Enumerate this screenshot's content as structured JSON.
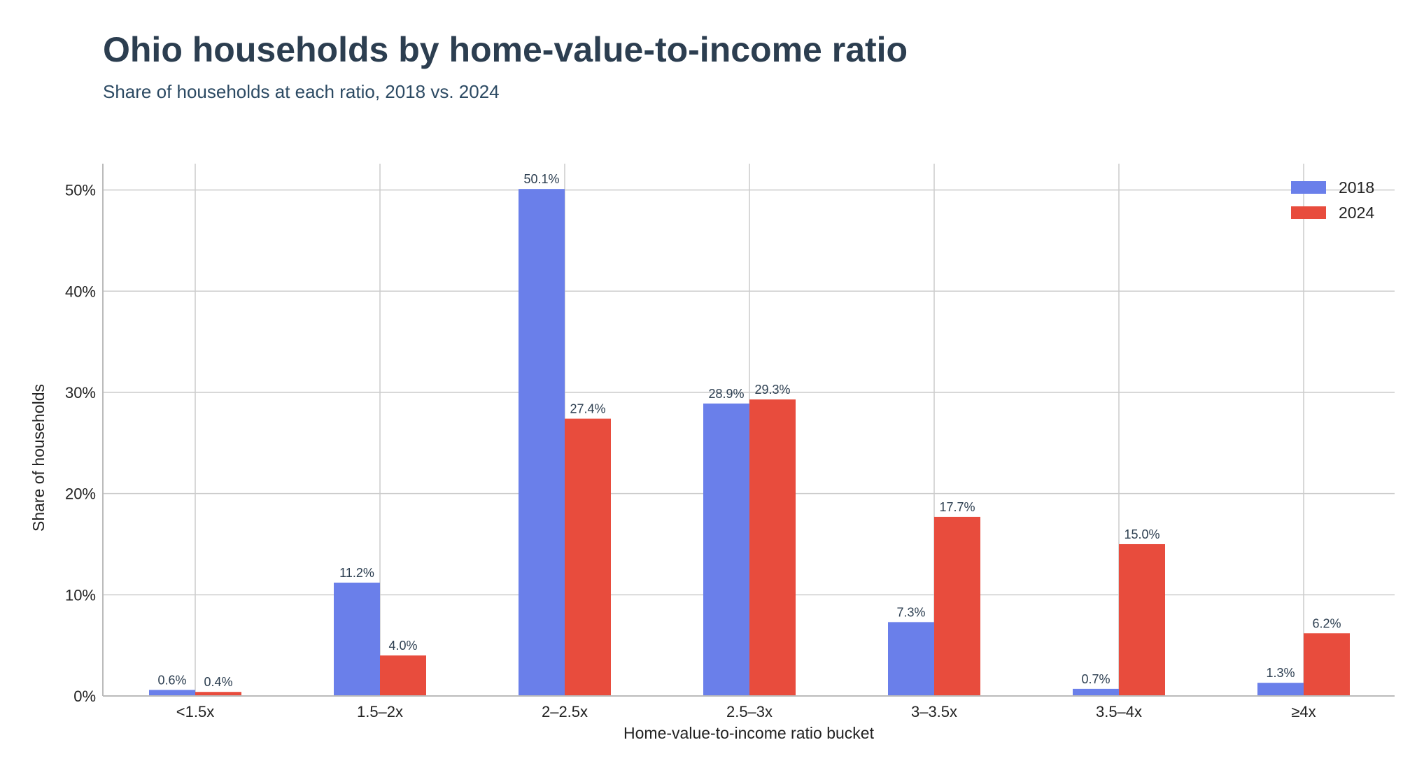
{
  "chart_data": {
    "type": "bar",
    "title": "Ohio households by home-value-to-income ratio",
    "subtitle": "Share of households at each ratio, 2018 vs. 2024",
    "xlabel": "Home-value-to-income ratio bucket",
    "ylabel": "Share of households",
    "categories": [
      "<1.5x",
      "1.5–2x",
      "2–2.5x",
      "2.5–3x",
      "3–3.5x",
      "3.5–4x",
      "≥4x"
    ],
    "series": [
      {
        "name": "2018",
        "color": "#6a7fea",
        "values": [
          0.6,
          11.2,
          50.1,
          28.9,
          7.3,
          0.7,
          1.3
        ]
      },
      {
        "name": "2024",
        "color": "#e84c3d",
        "values": [
          0.4,
          4.0,
          27.4,
          29.3,
          17.7,
          15.0,
          6.2
        ]
      }
    ],
    "ylim": [
      0,
      52.6
    ],
    "yticks": [
      0,
      10,
      20,
      30,
      40,
      50
    ],
    "ytick_labels": [
      "0%",
      "10%",
      "20%",
      "30%",
      "40%",
      "50%"
    ],
    "value_labels": [
      [
        "0.6%",
        "11.2%",
        "50.1%",
        "28.9%",
        "7.3%",
        "0.7%",
        "1.3%"
      ],
      [
        "0.4%",
        "4.0%",
        "27.4%",
        "29.3%",
        "17.7%",
        "15.0%",
        "6.2%"
      ]
    ],
    "grid": true,
    "legend": "top-right"
  }
}
